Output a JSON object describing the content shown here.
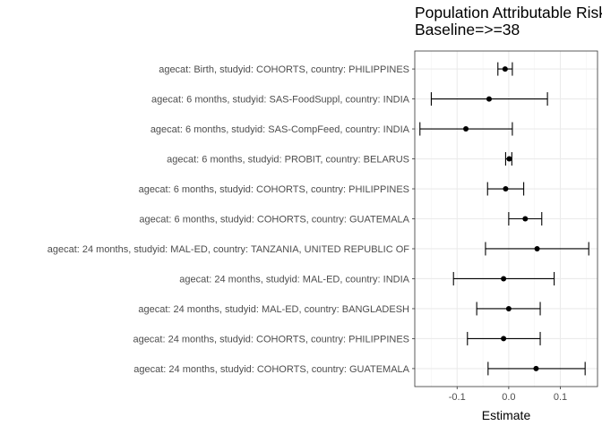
{
  "chart_data": {
    "type": "forest",
    "title_lines": [
      "Population Attributable Risk",
      "Baseline=>=38"
    ],
    "xlabel": "Estimate",
    "ylabel": "",
    "xlim": [
      -0.182,
      0.172
    ],
    "x_ticks": [
      -0.1,
      0.0,
      0.1
    ],
    "x_tick_labels": [
      "-0.1",
      "0.0",
      "0.1"
    ],
    "x_minor_ticks": [
      -0.15,
      -0.05,
      0.05,
      0.15
    ],
    "grid": true,
    "rows": [
      {
        "label": "agecat: Birth, studyid: COHORTS, country: PHILIPPINES",
        "est": -0.007,
        "lo": -0.021,
        "hi": 0.007
      },
      {
        "label": "agecat: 6 months, studyid: SAS-FoodSuppl, country: INDIA",
        "est": -0.038,
        "lo": -0.15,
        "hi": 0.075
      },
      {
        "label": "agecat: 6 months, studyid: SAS-CompFeed, country: INDIA",
        "est": -0.083,
        "lo": -0.172,
        "hi": 0.007
      },
      {
        "label": "agecat: 6 months, studyid: PROBIT, country: BELARUS",
        "est": 0.001,
        "lo": -0.006,
        "hi": 0.006
      },
      {
        "label": "agecat: 6 months, studyid: COHORTS, country: PHILIPPINES",
        "est": -0.006,
        "lo": -0.041,
        "hi": 0.029
      },
      {
        "label": "agecat: 6 months, studyid: COHORTS, country: GUATEMALA",
        "est": 0.032,
        "lo": 0.0,
        "hi": 0.064
      },
      {
        "label": "agecat: 24 months, studyid: MAL-ED, country: TANZANIA, UNITED REPUBLIC OF",
        "est": 0.055,
        "lo": -0.045,
        "hi": 0.155
      },
      {
        "label": "agecat: 24 months, studyid: MAL-ED, country: INDIA",
        "est": -0.01,
        "lo": -0.107,
        "hi": 0.088
      },
      {
        "label": "agecat: 24 months, studyid: MAL-ED, country: BANGLADESH",
        "est": 0.0,
        "lo": -0.062,
        "hi": 0.061
      },
      {
        "label": "agecat: 24 months, studyid: COHORTS, country: PHILIPPINES",
        "est": -0.01,
        "lo": -0.08,
        "hi": 0.061
      },
      {
        "label": "agecat: 24 months, studyid: COHORTS, country: GUATEMALA",
        "est": 0.053,
        "lo": -0.04,
        "hi": 0.148
      }
    ]
  }
}
